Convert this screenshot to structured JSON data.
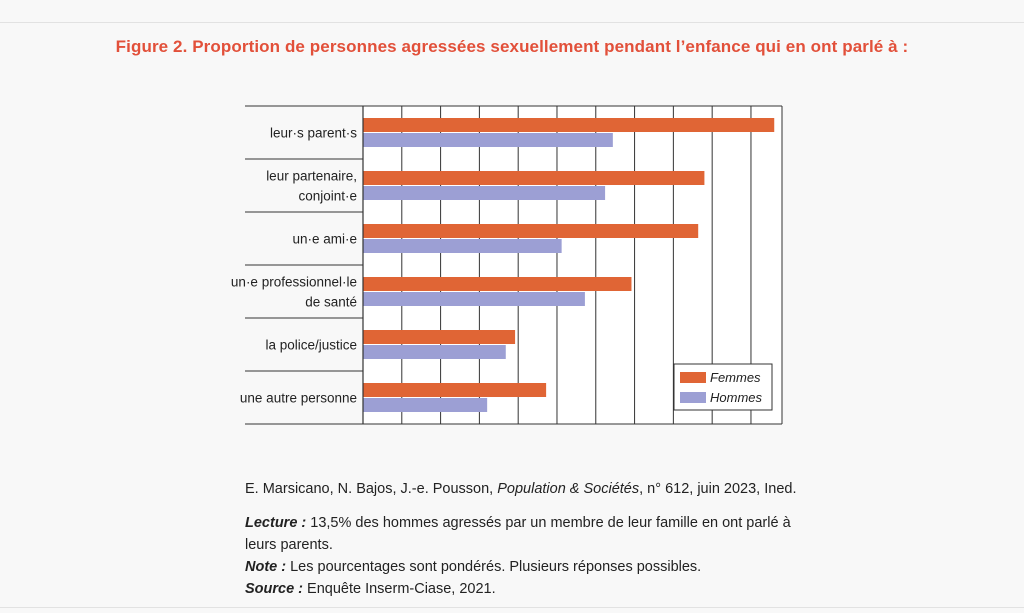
{
  "title": "Figure 2. Proportion de personnes agressées sexuellement pendant l’enfance qui en ont parlé à :",
  "colors": {
    "title": "#e2503a",
    "femmes": "#e06535",
    "hommes": "#9c9fd4"
  },
  "chart_data": {
    "type": "bar",
    "orientation": "horizontal",
    "categories": [
      [
        "leur·s parent·s"
      ],
      [
        "leur partenaire,",
        "conjoint·e"
      ],
      [
        "un·e ami·e"
      ],
      [
        "un·e professionnel·le",
        "de santé"
      ],
      [
        "la police/justice"
      ],
      [
        "une autre personne"
      ]
    ],
    "series": [
      {
        "name": "Femmes",
        "values": [
          26.5,
          22,
          21.6,
          17.3,
          9.8,
          11.8
        ]
      },
      {
        "name": "Hommes",
        "values": [
          16.1,
          15.6,
          12.8,
          14.3,
          9.2,
          8
        ]
      }
    ],
    "xlim": [
      0,
      27
    ],
    "grid_step": 2.5,
    "legend": "bottom-right"
  },
  "credit": {
    "authors": "E. Marsicano, N. Bajos, J.-e. Pousson, ",
    "journal": "Population & Sociétés",
    "rest": ", n° 612, juin 2023, Ined."
  },
  "notes": {
    "lecture_label": "Lecture :",
    "lecture_text": " 13,5% des hommes agressés par un membre de leur famille en ont parlé à leurs parents.",
    "note_label": "Note :",
    "note_text": " Les pourcentages sont pondérés. Plusieurs réponses possibles.",
    "source_label": "Source :",
    "source_text": " Enquête Inserm-Ciase, 2021."
  }
}
